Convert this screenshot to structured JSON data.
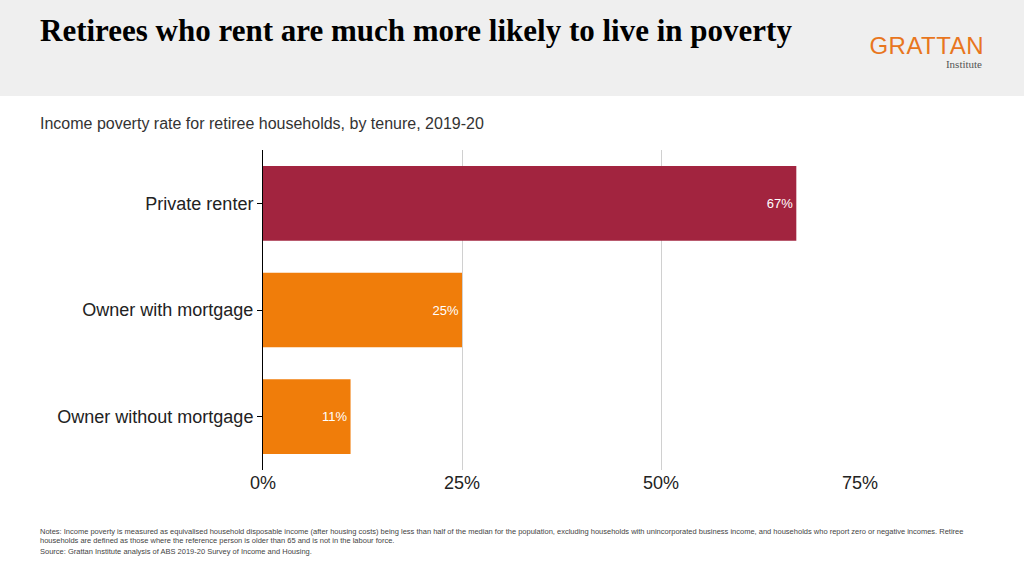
{
  "chart_data": {
    "type": "bar",
    "orientation": "horizontal",
    "title": "Retirees who rent are much more likely to live in poverty",
    "subtitle": "Income poverty rate for retiree households, by tenure, 2019-20",
    "logo": {
      "name": "GRATTAN",
      "sub": "Institute"
    },
    "categories": [
      "Private renter",
      "Owner with mortgage",
      "Owner without mortgage"
    ],
    "values": [
      67,
      25,
      11
    ],
    "value_labels": [
      "67%",
      "25%",
      "11%"
    ],
    "colors": [
      "#a2243f",
      "#f07d0a",
      "#f07d0a"
    ],
    "data_labels": true,
    "xlim": [
      0,
      75
    ],
    "xticks": [
      {
        "value": 0,
        "label": "0%"
      },
      {
        "value": 25,
        "label": "25%"
      },
      {
        "value": 50,
        "label": "50%"
      },
      {
        "value": 75,
        "label": "75%"
      }
    ],
    "grid": true,
    "notes": "Notes: Income poverty is measured as equivalised household disposable income (after housing costs) being less than half of the median for the population, excluding households with unincorporated business income, and households who report zero or negative incomes. Retiree households are defined as those where the reference person is older than 65 and is not in the labour force.",
    "source": "Source: Grattan Institute analysis of ABS 2019-20 Survey of Income and Housing."
  }
}
